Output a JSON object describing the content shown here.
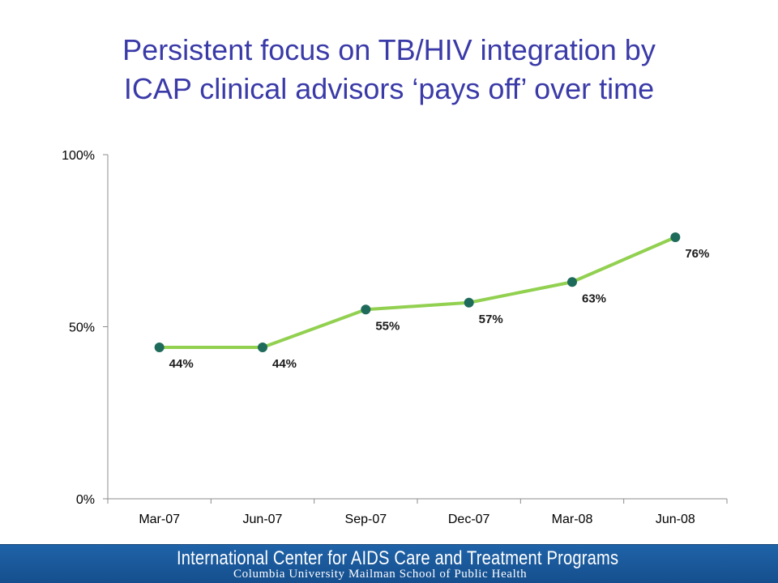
{
  "slide": {
    "title_line1": "Persistent focus on TB/HIV integration by",
    "title_line2": "ICAP clinical advisors ‘pays off’ over time"
  },
  "footer": {
    "line1": "International Center for AIDS Care and Treatment Programs",
    "line2": "Columbia University Mailman School of Public Health"
  },
  "colors": {
    "title": "#3a3aa8",
    "line": "#92d050",
    "marker": "#1f6b5b",
    "footer": "#1a5a9c"
  },
  "chart_data": {
    "type": "line",
    "categories": [
      "Mar-07",
      "Jun-07",
      "Sep-07",
      "Dec-07",
      "Mar-08",
      "Jun-08"
    ],
    "values": [
      44,
      44,
      55,
      57,
      63,
      76
    ],
    "data_labels": [
      "44%",
      "44%",
      "55%",
      "57%",
      "63%",
      "76%"
    ],
    "y_ticks": [
      0,
      50,
      100
    ],
    "y_tick_labels": [
      "0%",
      "50%",
      "100%"
    ],
    "ylim": [
      0,
      100
    ],
    "grid": false,
    "legend": "none"
  }
}
